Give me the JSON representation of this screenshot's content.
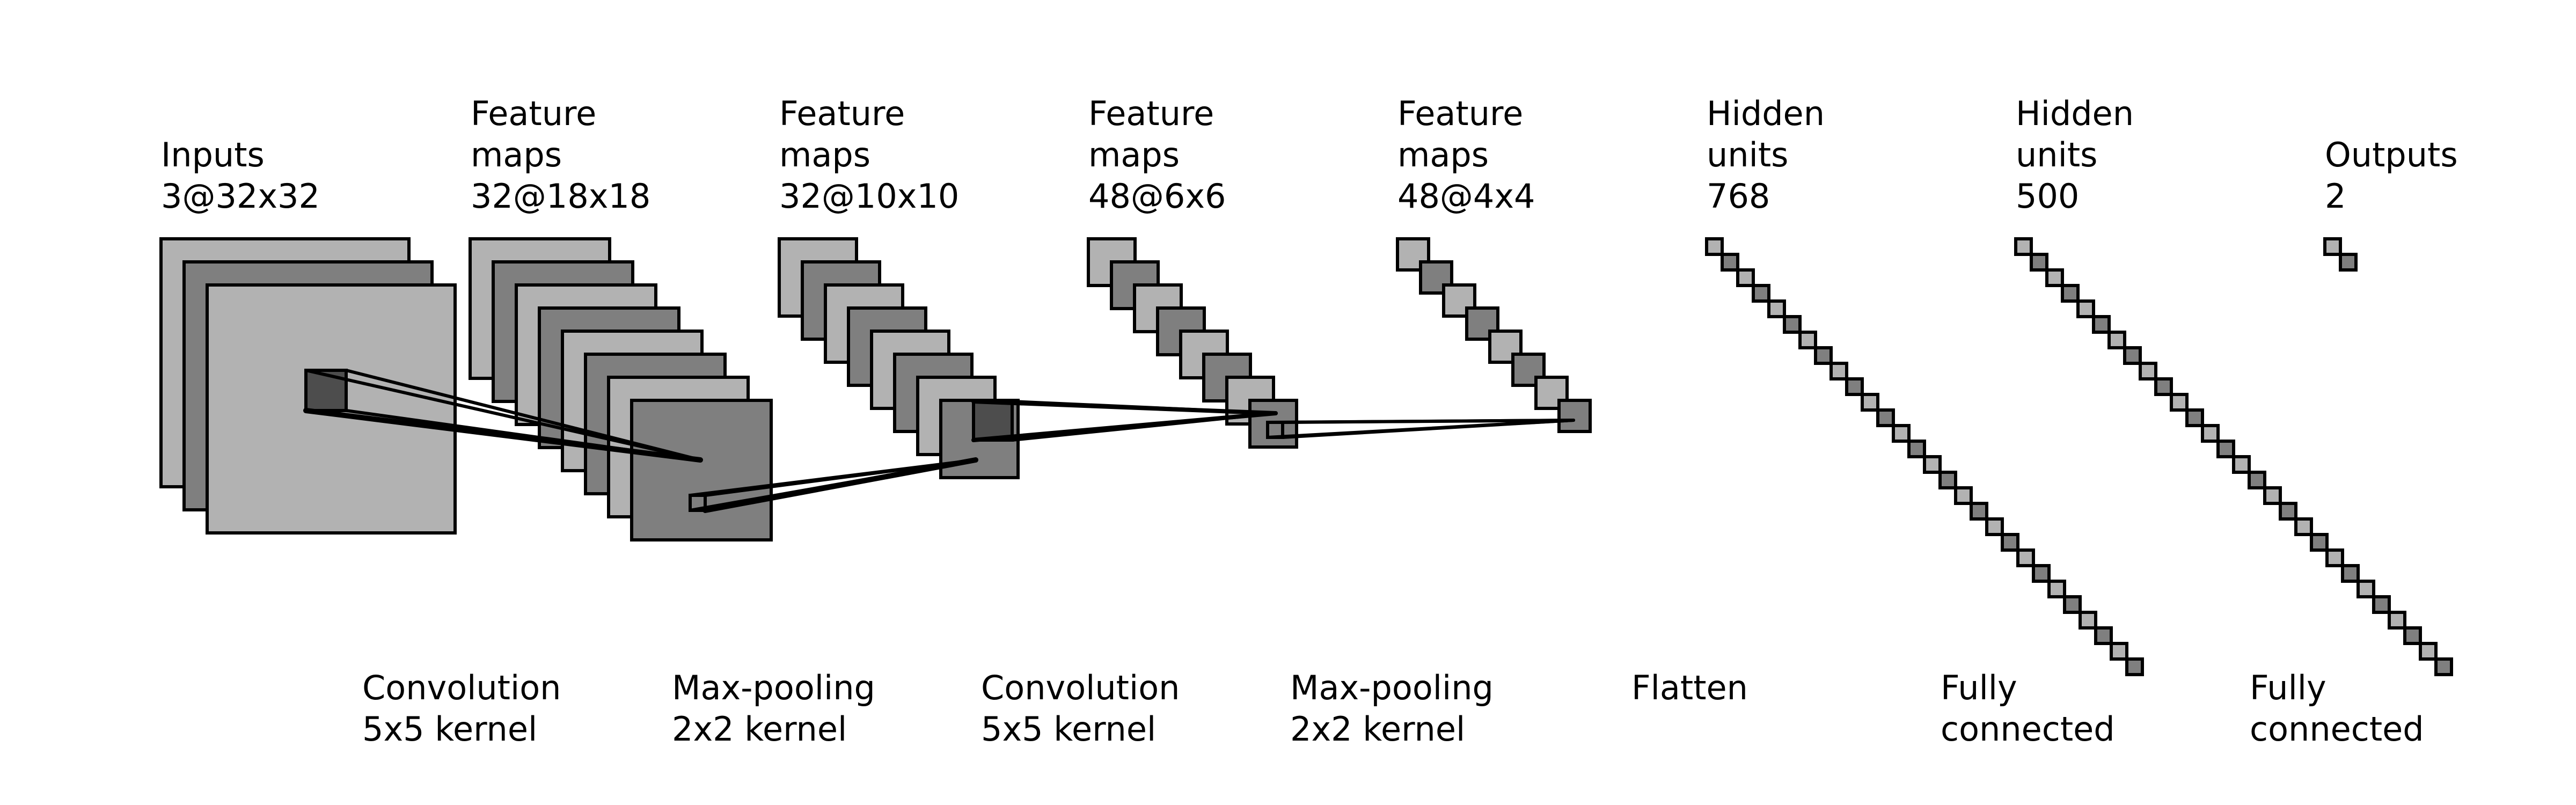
{
  "colors": {
    "light": "#b2b2b2",
    "dark": "#7f7f7f",
    "patch": "#4d4d4d",
    "stroke": "#000000",
    "background": "#ffffff"
  },
  "layers": [
    {
      "line1": "Inputs",
      "line2": "3@32x32",
      "line3": ""
    },
    {
      "line1": "Feature",
      "line2": "maps",
      "line3": "32@18x18"
    },
    {
      "line1": "Feature",
      "line2": "maps",
      "line3": "32@10x10"
    },
    {
      "line1": "Feature",
      "line2": "maps",
      "line3": "48@6x6"
    },
    {
      "line1": "Feature",
      "line2": "maps",
      "line3": "48@4x4"
    },
    {
      "line1": "Hidden",
      "line2": "units",
      "line3": "768"
    },
    {
      "line1": "Hidden",
      "line2": "units",
      "line3": "500"
    },
    {
      "line1": "Outputs",
      "line2": "2",
      "line3": ""
    }
  ],
  "operations": [
    {
      "line1": "Convolution",
      "line2": "5x5 kernel"
    },
    {
      "line1": "Max-pooling",
      "line2": "2x2 kernel"
    },
    {
      "line1": "Convolution",
      "line2": "5x5 kernel"
    },
    {
      "line1": "Max-pooling",
      "line2": "2x2 kernel"
    },
    {
      "line1": "Flatten",
      "line2": ""
    },
    {
      "line1": "Fully",
      "line2": "connected"
    },
    {
      "line1": "Fully",
      "line2": "connected"
    }
  ]
}
